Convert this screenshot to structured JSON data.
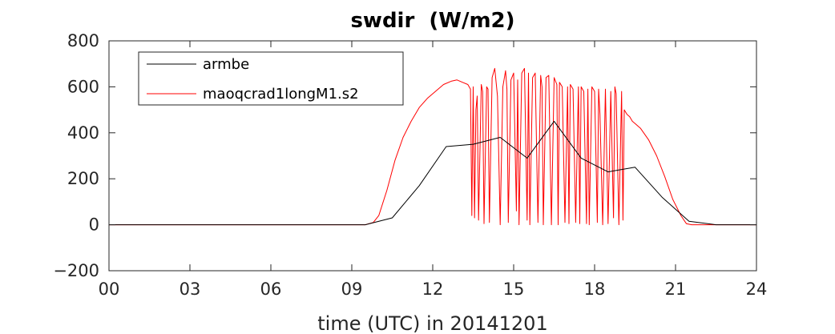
{
  "chart_data": {
    "type": "line",
    "title": "swdir  (W/m2)",
    "xlabel": "time (UTC) in 20141201",
    "ylabel": "",
    "xlim": [
      0,
      24
    ],
    "ylim": [
      -200,
      800
    ],
    "xticks": [
      0,
      3,
      6,
      9,
      12,
      15,
      18,
      21,
      24
    ],
    "xtick_labels": [
      "00",
      "03",
      "06",
      "09",
      "12",
      "15",
      "18",
      "21",
      "24"
    ],
    "yticks": [
      -200,
      0,
      200,
      400,
      600,
      800
    ],
    "ytick_labels": [
      "−200",
      "0",
      "200",
      "400",
      "600",
      "800"
    ],
    "grid": false,
    "legend_position": "top-left",
    "series": [
      {
        "name": "armbe",
        "color": "#000000",
        "x": [
          0,
          1,
          2,
          3,
          4,
          5,
          6,
          7,
          8,
          9,
          9.5,
          10.5,
          11.5,
          12.5,
          13.5,
          14.5,
          15.5,
          16.5,
          17.5,
          18.5,
          19.5,
          20.5,
          21.5,
          22.5,
          23,
          24
        ],
        "y": [
          0,
          0,
          0,
          0,
          0,
          0,
          0,
          0,
          0,
          0,
          0,
          30,
          170,
          340,
          350,
          380,
          290,
          450,
          290,
          230,
          250,
          120,
          15,
          0,
          0,
          0
        ]
      },
      {
        "name": "maoqcrad1longM1.s2",
        "color": "#ff0000",
        "x": [
          0,
          9.5,
          9.8,
          10.0,
          10.3,
          10.6,
          10.9,
          11.2,
          11.5,
          11.8,
          12.1,
          12.4,
          12.7,
          12.9,
          13.1,
          13.3,
          13.4,
          13.45,
          13.5,
          13.55,
          13.6,
          13.65,
          13.7,
          13.8,
          13.85,
          13.9,
          14.0,
          14.05,
          14.1,
          14.2,
          14.3,
          14.35,
          14.4,
          14.5,
          14.6,
          14.7,
          14.75,
          14.8,
          14.9,
          15.0,
          15.1,
          15.15,
          15.2,
          15.3,
          15.4,
          15.5,
          15.55,
          15.6,
          15.7,
          15.8,
          15.9,
          16.0,
          16.05,
          16.1,
          16.2,
          16.3,
          16.4,
          16.5,
          16.6,
          16.65,
          16.7,
          16.8,
          16.9,
          17.0,
          17.05,
          17.1,
          17.2,
          17.3,
          17.4,
          17.45,
          17.5,
          17.6,
          17.7,
          17.75,
          17.8,
          17.9,
          18.0,
          18.1,
          18.15,
          18.2,
          18.3,
          18.4,
          18.5,
          18.6,
          18.7,
          18.75,
          18.8,
          18.9,
          19.0,
          19.05,
          19.1,
          19.2,
          19.3,
          19.4,
          19.5,
          19.7,
          20.0,
          20.3,
          20.6,
          20.9,
          21.2,
          21.4,
          21.6,
          21.8,
          22.0,
          22.5,
          23,
          24
        ],
        "y": [
          0,
          0,
          10,
          40,
          150,
          280,
          380,
          450,
          510,
          550,
          580,
          610,
          625,
          630,
          620,
          610,
          590,
          40,
          600,
          30,
          500,
          560,
          20,
          610,
          580,
          5,
          600,
          590,
          10,
          640,
          680,
          620,
          560,
          0,
          600,
          670,
          590,
          10,
          630,
          660,
          60,
          630,
          0,
          660,
          680,
          20,
          660,
          0,
          640,
          660,
          10,
          650,
          600,
          0,
          640,
          650,
          0,
          640,
          610,
          0,
          620,
          600,
          10,
          600,
          5,
          610,
          590,
          10,
          600,
          5,
          600,
          580,
          5,
          590,
          0,
          600,
          580,
          10,
          590,
          480,
          0,
          590,
          5,
          580,
          30,
          600,
          570,
          0,
          580,
          20,
          500,
          480,
          470,
          450,
          440,
          420,
          370,
          300,
          210,
          110,
          40,
          5,
          0,
          0,
          0,
          0,
          0,
          0
        ]
      }
    ]
  }
}
